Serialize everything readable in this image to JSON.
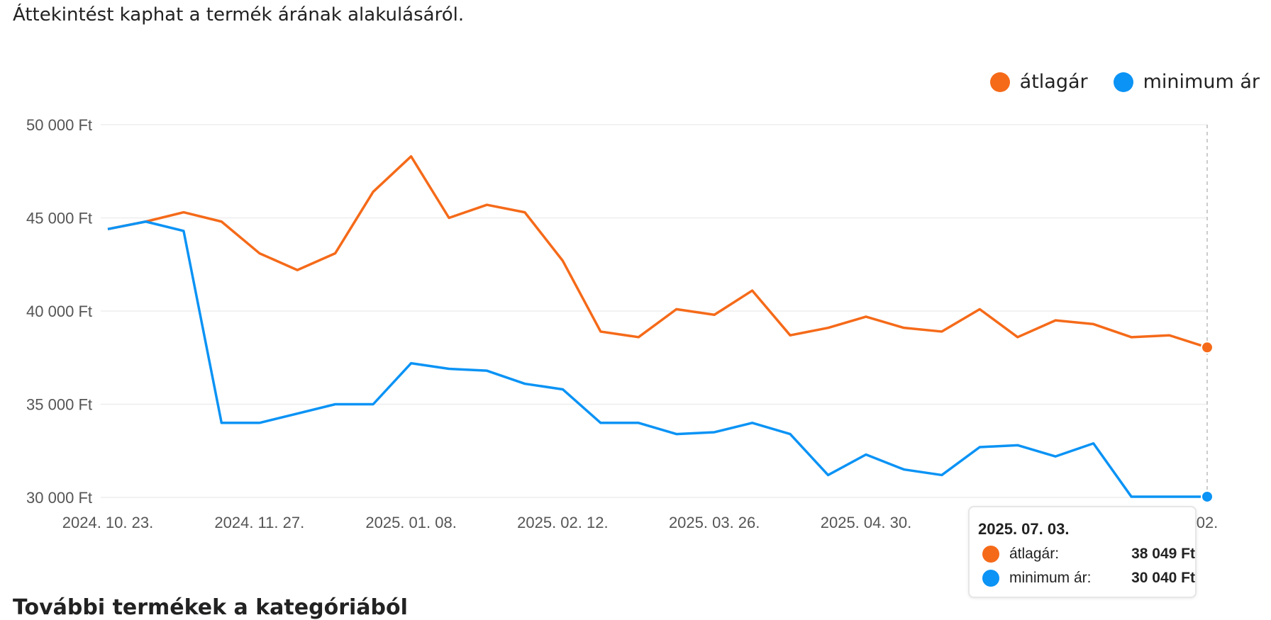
{
  "intro_text": "Áttekintést kaphat a termék árának alakulásáról.",
  "legend": [
    {
      "label": "átlagár",
      "color": "#f56a19"
    },
    {
      "label": "minimum ár",
      "color": "#0b93f5"
    }
  ],
  "tooltip": {
    "date": "2025. 07. 03.",
    "rows": [
      {
        "label": "átlagár:",
        "value": "38 049 Ft",
        "color": "#f56a19"
      },
      {
        "label": "minimum ár:",
        "value": "30 040 Ft",
        "color": "#0b93f5"
      }
    ]
  },
  "section_title": "További termékek a kategóriából",
  "chart_data": {
    "type": "line",
    "ylim": [
      30000,
      50000
    ],
    "y_ticks": [
      50000,
      45000,
      40000,
      35000,
      30000
    ],
    "y_tick_labels": [
      "50 000 Ft",
      "45 000 Ft",
      "40 000 Ft",
      "35 000 Ft",
      "30 000 Ft"
    ],
    "x_tick_labels": [
      {
        "index": 0,
        "label": "2024. 10. 23."
      },
      {
        "index": 4,
        "label": "2024. 11. 27."
      },
      {
        "index": 8,
        "label": "2025. 01. 08."
      },
      {
        "index": 12,
        "label": "2025. 02. 12."
      },
      {
        "index": 16,
        "label": "2025. 03. 26."
      },
      {
        "index": 20,
        "label": "2025. 04. 30."
      },
      {
        "index": 24,
        "label": ""
      },
      {
        "index": 29,
        "label": "02."
      }
    ],
    "n_points": 30,
    "grid": true,
    "legend_position": "top-right",
    "highlight_index": 29,
    "series": [
      {
        "name": "átlagár",
        "color": "#f56a19",
        "values": [
          44400,
          44800,
          45300,
          44800,
          43100,
          42200,
          43100,
          46400,
          48300,
          45000,
          45700,
          45300,
          42700,
          38900,
          38600,
          40100,
          39800,
          41100,
          38700,
          39100,
          39700,
          39100,
          38900,
          40100,
          38600,
          39500,
          39300,
          38600,
          38700,
          38049
        ]
      },
      {
        "name": "minimum ár",
        "color": "#0b93f5",
        "values": [
          44400,
          44800,
          44300,
          34000,
          34000,
          34500,
          35000,
          35000,
          37200,
          36900,
          36800,
          36100,
          35800,
          34000,
          34000,
          33400,
          33500,
          34000,
          33400,
          31200,
          32300,
          31500,
          31200,
          32700,
          32800,
          32200,
          32900,
          30040,
          30040,
          30040
        ]
      }
    ]
  }
}
